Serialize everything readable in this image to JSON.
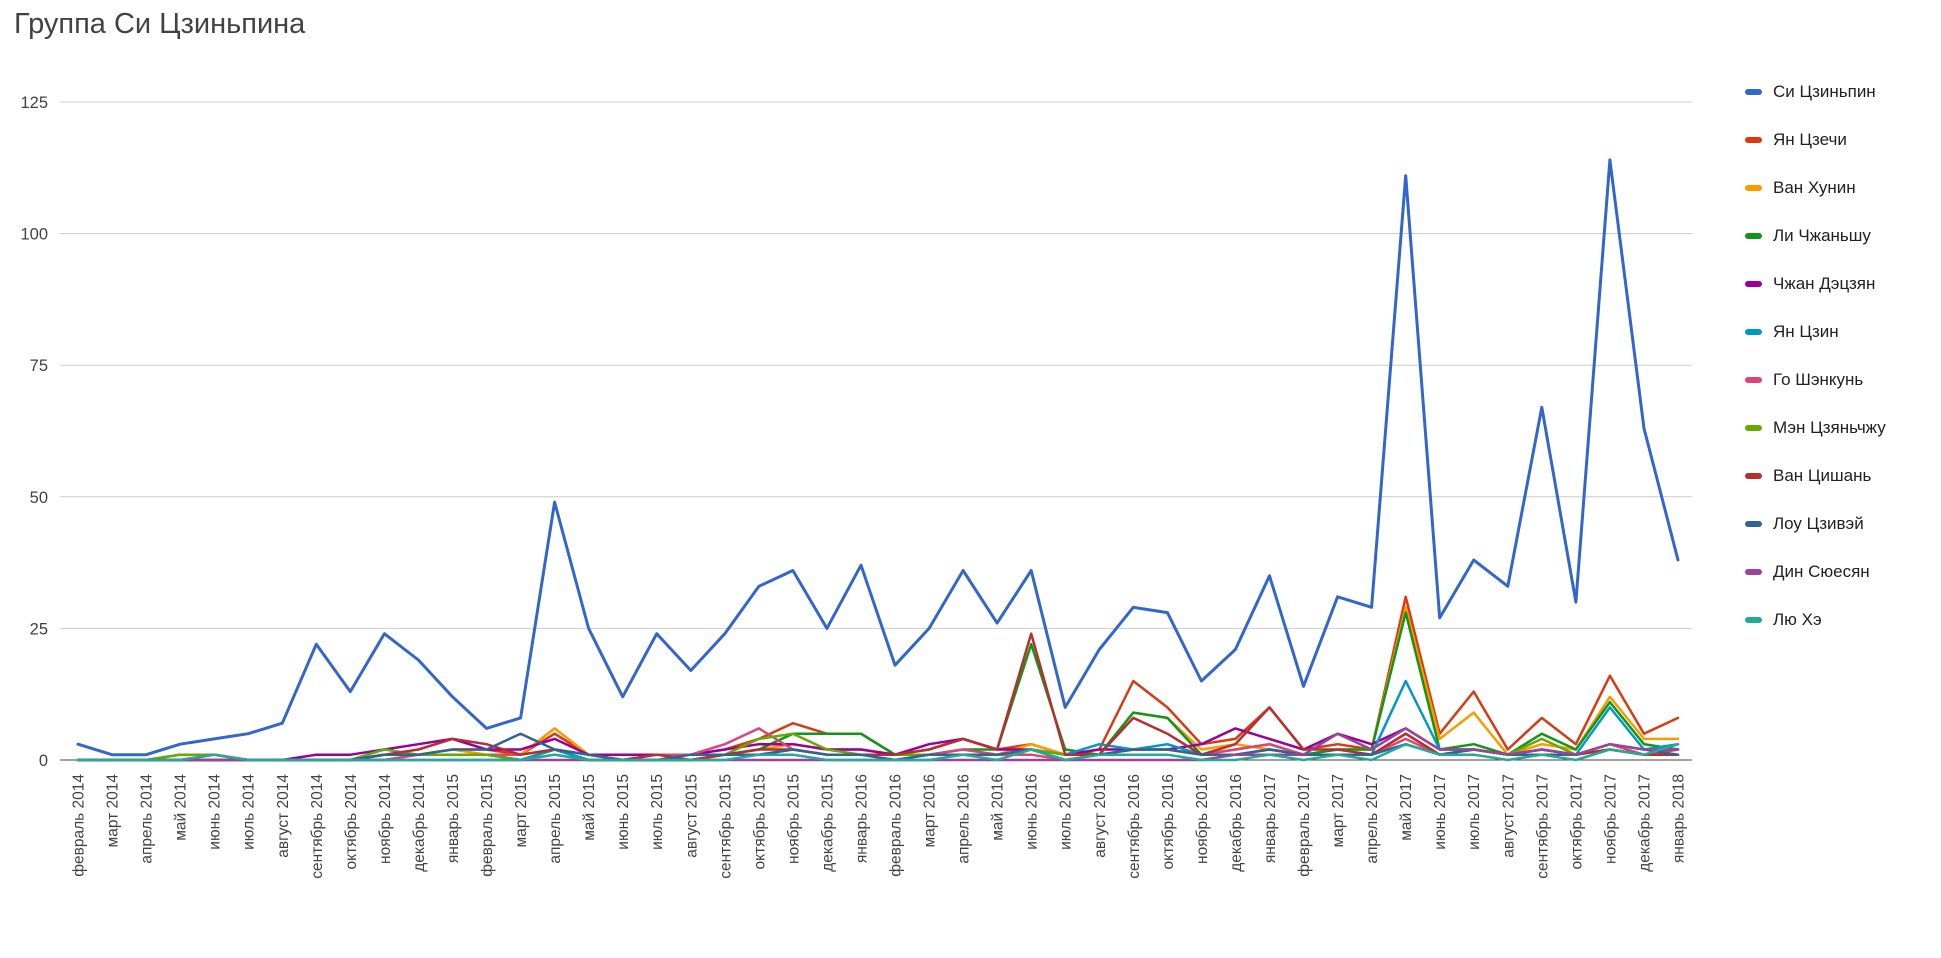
{
  "chart_data": {
    "type": "line",
    "title": "Группа Си Цзиньпина",
    "xlabel": "",
    "ylabel": "",
    "ylim": [
      0,
      125
    ],
    "yticks": [
      0,
      25,
      50,
      75,
      100,
      125
    ],
    "grid": true,
    "legend_position": "right",
    "axis_color": "#424242",
    "gridline_color": "#cccccc",
    "categories": [
      "февраль 2014",
      "март 2014",
      "апрель 2014",
      "май 2014",
      "июнь 2014",
      "июль 2014",
      "август 2014",
      "сентябрь 2014",
      "октябрь 2014",
      "ноябрь 2014",
      "декабрь 2014",
      "январь 2015",
      "февраль 2015",
      "март 2015",
      "апрель 2015",
      "май 2015",
      "июнь 2015",
      "июль 2015",
      "август 2015",
      "сентябрь 2015",
      "октябрь 2015",
      "ноябрь 2015",
      "декабрь 2015",
      "январь 2016",
      "февраль 2016",
      "март 2016",
      "апрель 2016",
      "май 2016",
      "июнь 2016",
      "июль 2016",
      "август 2016",
      "сентябрь 2016",
      "октябрь 2016",
      "ноябрь 2016",
      "декабрь 2016",
      "январь 2017",
      "февраль 2017",
      "март 2017",
      "апрель 2017",
      "май 2017",
      "июнь 2017",
      "июль 2017",
      "август 2017",
      "сентябрь 2017",
      "октябрь 2017",
      "ноябрь 2017",
      "декабрь 2017",
      "январь 2018"
    ],
    "series": [
      {
        "name": "Си Цзиньпин",
        "color": "#3366CC",
        "values": [
          3,
          1,
          1,
          3,
          4,
          5,
          7,
          22,
          13,
          24,
          19,
          12,
          6,
          8,
          49,
          25,
          12,
          24,
          17,
          24,
          33,
          36,
          25,
          37,
          18,
          25,
          36,
          26,
          36,
          10,
          21,
          29,
          28,
          15,
          21,
          35,
          14,
          31,
          29,
          111,
          27,
          38,
          33,
          67,
          30,
          114,
          63,
          38
        ]
      },
      {
        "name": "Ян Цзечи",
        "color": "#DC3912",
        "values": [
          0,
          0,
          0,
          0,
          1,
          0,
          0,
          0,
          0,
          1,
          1,
          2,
          2,
          1,
          5,
          1,
          0,
          1,
          1,
          2,
          4,
          7,
          5,
          5,
          1,
          2,
          4,
          2,
          3,
          1,
          2,
          15,
          10,
          3,
          4,
          10,
          2,
          3,
          2,
          31,
          5,
          13,
          2,
          8,
          3,
          16,
          5,
          8
        ]
      },
      {
        "name": "Ван Хунин",
        "color": "#FF9900",
        "values": [
          0,
          0,
          0,
          0,
          0,
          0,
          0,
          0,
          0,
          1,
          1,
          2,
          1,
          1,
          6,
          1,
          0,
          0,
          0,
          1,
          2,
          3,
          2,
          2,
          1,
          1,
          2,
          1,
          3,
          1,
          1,
          9,
          8,
          2,
          3,
          2,
          1,
          2,
          2,
          29,
          4,
          9,
          1,
          3,
          2,
          12,
          4,
          4
        ]
      },
      {
        "name": "Ли Чжаньшу",
        "color": "#109618",
        "values": [
          0,
          0,
          0,
          1,
          1,
          0,
          0,
          0,
          0,
          1,
          1,
          1,
          1,
          0,
          2,
          0,
          0,
          0,
          0,
          1,
          2,
          5,
          5,
          5,
          1,
          1,
          2,
          2,
          22,
          2,
          1,
          9,
          8,
          1,
          2,
          3,
          1,
          2,
          2,
          28,
          2,
          3,
          1,
          5,
          2,
          11,
          3,
          2
        ]
      },
      {
        "name": "Чжан Дэцзян",
        "color": "#990099",
        "values": [
          0,
          0,
          0,
          0,
          0,
          0,
          0,
          1,
          1,
          2,
          3,
          4,
          2,
          2,
          4,
          1,
          1,
          1,
          1,
          2,
          3,
          3,
          2,
          2,
          1,
          3,
          4,
          2,
          2,
          1,
          2,
          2,
          2,
          3,
          6,
          4,
          2,
          5,
          3,
          6,
          2,
          2,
          1,
          2,
          1,
          2,
          1,
          2
        ]
      },
      {
        "name": "Ян Цзин",
        "color": "#0099C6",
        "values": [
          0,
          0,
          0,
          0,
          0,
          0,
          0,
          0,
          0,
          0,
          1,
          1,
          1,
          0,
          2,
          0,
          0,
          0,
          0,
          1,
          1,
          2,
          1,
          1,
          0,
          1,
          1,
          1,
          2,
          1,
          3,
          2,
          3,
          1,
          1,
          2,
          1,
          1,
          1,
          15,
          2,
          2,
          1,
          2,
          1,
          10,
          2,
          3
        ]
      },
      {
        "name": "Го Шэнкунь",
        "color": "#DD4477",
        "values": [
          0,
          0,
          0,
          0,
          0,
          0,
          0,
          0,
          0,
          0,
          1,
          1,
          1,
          1,
          2,
          1,
          0,
          1,
          1,
          3,
          6,
          2,
          1,
          1,
          1,
          1,
          2,
          1,
          1,
          0,
          1,
          2,
          2,
          1,
          2,
          3,
          1,
          1,
          1,
          4,
          1,
          2,
          1,
          1,
          1,
          3,
          1,
          2
        ]
      },
      {
        "name": "Мэн Цзяньчжу",
        "color": "#66AA00",
        "values": [
          0,
          0,
          0,
          1,
          1,
          0,
          0,
          0,
          0,
          2,
          1,
          1,
          1,
          0,
          1,
          0,
          0,
          0,
          0,
          1,
          4,
          5,
          2,
          1,
          1,
          1,
          1,
          1,
          2,
          1,
          1,
          2,
          2,
          1,
          1,
          2,
          1,
          1,
          1,
          5,
          1,
          2,
          1,
          4,
          1,
          2,
          1,
          1
        ]
      },
      {
        "name": "Ван Цишань",
        "color": "#B82E2E",
        "values": [
          0,
          0,
          0,
          0,
          1,
          0,
          0,
          0,
          0,
          1,
          2,
          4,
          3,
          1,
          2,
          1,
          0,
          1,
          0,
          1,
          2,
          2,
          1,
          1,
          1,
          2,
          4,
          2,
          24,
          1,
          1,
          8,
          5,
          1,
          3,
          10,
          2,
          2,
          1,
          5,
          1,
          2,
          1,
          2,
          1,
          2,
          1,
          1
        ]
      },
      {
        "name": "Лоу Цзивэй",
        "color": "#316395",
        "values": [
          0,
          0,
          0,
          0,
          0,
          0,
          0,
          0,
          0,
          1,
          1,
          2,
          2,
          5,
          2,
          1,
          0,
          0,
          1,
          1,
          1,
          2,
          1,
          1,
          0,
          1,
          1,
          1,
          2,
          0,
          1,
          2,
          2,
          1,
          1,
          2,
          1,
          1,
          1,
          3,
          1,
          2,
          1,
          1,
          1,
          3,
          2,
          1
        ]
      },
      {
        "name": "Дин Сюесян",
        "color": "#994499",
        "values": [
          0,
          0,
          0,
          0,
          0,
          0,
          0,
          0,
          0,
          0,
          0,
          0,
          0,
          0,
          0,
          0,
          0,
          0,
          0,
          0,
          0,
          0,
          0,
          0,
          0,
          0,
          0,
          0,
          0,
          0,
          0,
          0,
          0,
          0,
          1,
          1,
          1,
          5,
          2,
          6,
          2,
          2,
          1,
          2,
          1,
          3,
          2,
          2
        ]
      },
      {
        "name": "Лю Хэ",
        "color": "#22AA99",
        "values": [
          0,
          0,
          0,
          0,
          1,
          0,
          0,
          0,
          0,
          0,
          0,
          0,
          0,
          0,
          1,
          0,
          0,
          0,
          0,
          0,
          1,
          1,
          0,
          0,
          0,
          0,
          1,
          0,
          2,
          0,
          1,
          1,
          1,
          0,
          0,
          1,
          0,
          1,
          0,
          3,
          1,
          1,
          0,
          1,
          0,
          2,
          1,
          3
        ]
      }
    ]
  }
}
